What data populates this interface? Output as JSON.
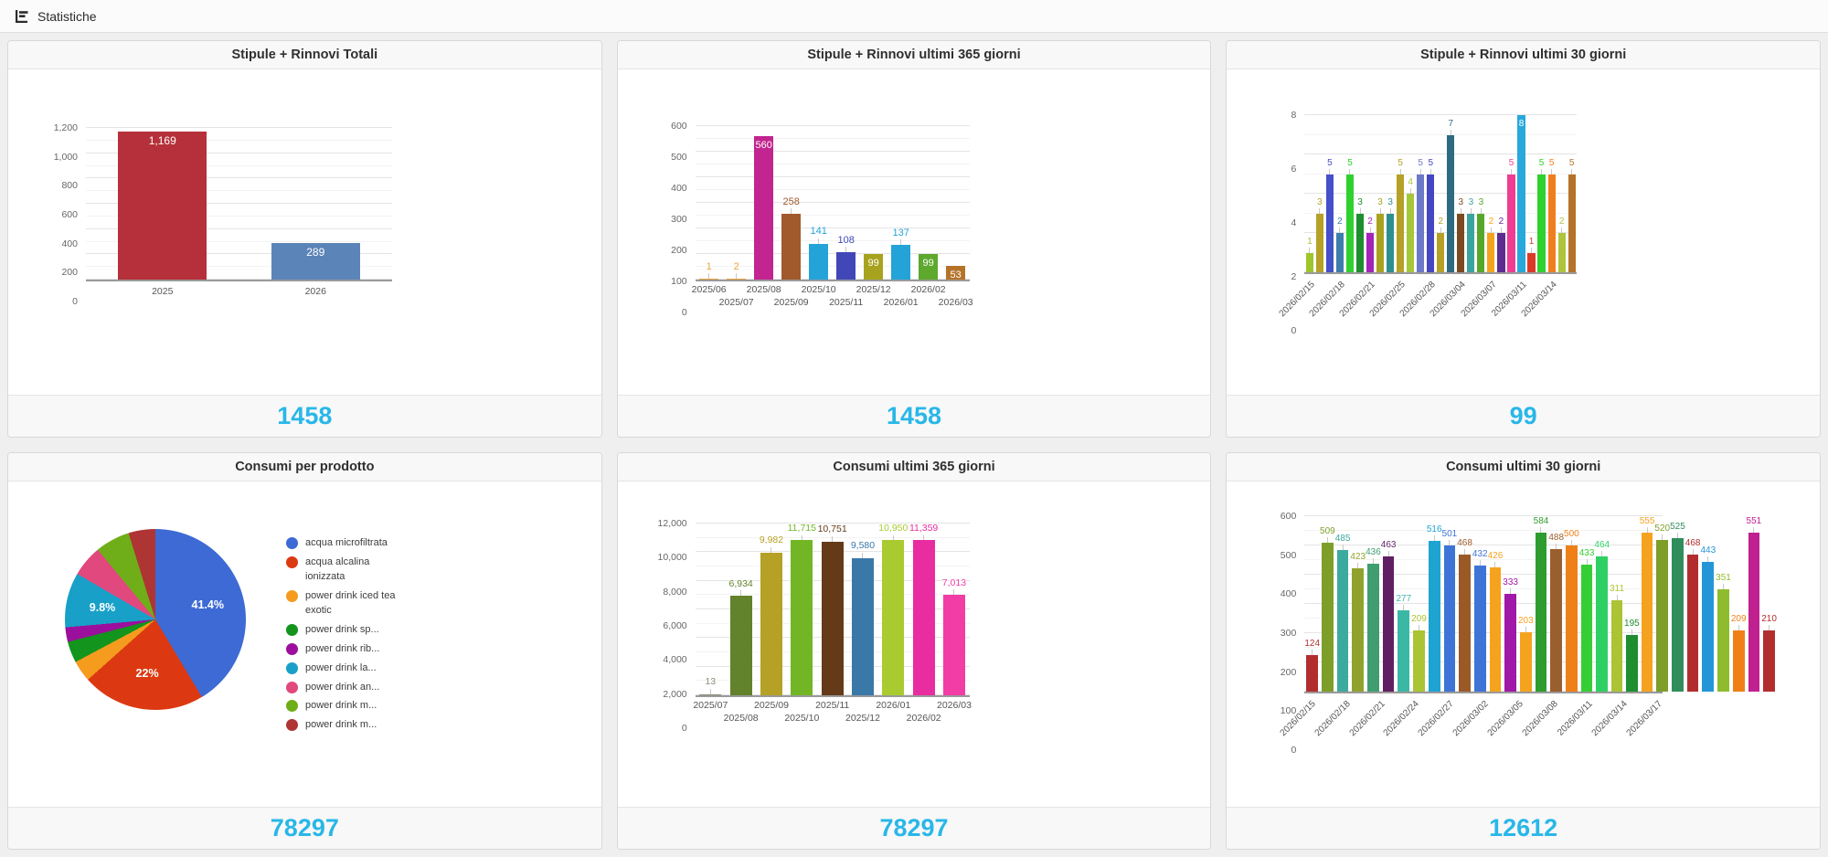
{
  "header": {
    "title": "Statistiche",
    "icon": "bar-chart-icon"
  },
  "accent_color": "#29B7E8",
  "cards": [
    {
      "title": "Stipule + Rinnovi Totali",
      "total": "1458",
      "chart": {
        "type": "bar",
        "categories": [
          "2025",
          "2026"
        ],
        "values": [
          1169,
          289
        ],
        "value_labels": [
          "1,169",
          "289"
        ],
        "colors": [
          "#B5303A",
          "#5B84B9"
        ],
        "inside_label_indexes": [
          0,
          1
        ],
        "ymax": 1200,
        "yticks": [
          "0",
          "200",
          "400",
          "600",
          "800",
          "1,000",
          "1,200"
        ],
        "xmode": "each",
        "grid": "on"
      }
    },
    {
      "title": "Stipule + Rinnovi ultimi 365 giorni",
      "total": "1458",
      "chart": {
        "type": "bar",
        "categories": [
          "2025/06",
          "2025/07",
          "2025/08",
          "2025/09",
          "2025/10",
          "2025/11",
          "2025/12",
          "2026/01",
          "2026/02",
          "2026/03"
        ],
        "values": [
          1,
          2,
          560,
          258,
          141,
          108,
          99,
          137,
          99,
          53
        ],
        "value_labels": [
          "1",
          "2",
          "560",
          "258",
          "141",
          "108",
          "99",
          "137",
          "99",
          "53"
        ],
        "colors": [
          "#E8A33D",
          "#E8A33D",
          "#C2258F",
          "#A05A2C",
          "#24A3D8",
          "#4247B8",
          "#A8A31F",
          "#24A3D8",
          "#5DA82D",
          "#B5732A"
        ],
        "inside_label_indexes": [
          2,
          6,
          8,
          9
        ],
        "ymax": 600,
        "yticks": [
          "0",
          "100",
          "200",
          "300",
          "400",
          "500",
          "600"
        ],
        "xmode": "stagger",
        "grid": "on"
      }
    },
    {
      "title": "Stipule + Rinnovi ultimi 30 giorni",
      "total": "99",
      "chart": {
        "type": "bar",
        "values": [
          1,
          3,
          5,
          2,
          5,
          3,
          2,
          3,
          3,
          5,
          4,
          5,
          5,
          2,
          7,
          3,
          3,
          3,
          2,
          2,
          5,
          8,
          1,
          5,
          5,
          2,
          5
        ],
        "value_labels": [
          "1",
          "3",
          "5",
          "2",
          "5",
          "3",
          "2",
          "3",
          "3",
          "5",
          "4",
          "5",
          "5",
          "2",
          "7",
          "3",
          "3",
          "3",
          "2",
          "2",
          "5",
          "8",
          "1",
          "5",
          "5",
          "2",
          "5"
        ],
        "colors": [
          "#9DC62D",
          "#B5A126",
          "#4450C8",
          "#3E7CAD",
          "#2FD12F",
          "#1E8E2E",
          "#A423B8",
          "#A8A31F",
          "#2E8F8F",
          "#B5A126",
          "#A4C838",
          "#6C79C8",
          "#4547C2",
          "#B5A126",
          "#2D6B80",
          "#7C4A20",
          "#3AA49E",
          "#57A82A",
          "#F5A31F",
          "#5C2D8F",
          "#EE3D92",
          "#28A9DB",
          "#DB3A28",
          "#2FD12F",
          "#EF7F1E",
          "#AFC43A",
          "#B5732A"
        ],
        "inside_label_indexes": [
          21
        ],
        "ymax": 8,
        "yticks": [
          "0",
          "2",
          "4",
          "6",
          "8"
        ],
        "xmode": "rotate",
        "label_every": 3,
        "xlabels": [
          "2026/02/15",
          "2026/02/18",
          "2026/02/21",
          "2026/02/25",
          "2026/02/28",
          "2026/03/04",
          "2026/03/07",
          "2026/03/11",
          "2026/03/14"
        ],
        "grid": "on"
      }
    },
    {
      "title": "Consumi per prodotto",
      "total": "78297",
      "chart": {
        "type": "pie",
        "legend_position": "right",
        "slices": [
          {
            "label": "acqua microfiltrata",
            "pct": 41.4,
            "pct_label": "41.4%",
            "color": "#3D6AD4"
          },
          {
            "label": "acqua alcalina ionizzata",
            "pct": 22,
            "pct_label": "22%",
            "color": "#DC3912"
          },
          {
            "label": "power drink iced tea exotic",
            "pct": 3.8,
            "color": "#F59B1D"
          },
          {
            "label": "power drink sp...",
            "pct": 3.8,
            "color": "#13941D"
          },
          {
            "label": "power drink rib...",
            "pct": 2.6,
            "color": "#9C0F9C"
          },
          {
            "label": "power drink la...",
            "pct": 9.8,
            "pct_label": "9.8%",
            "color": "#18A0C8"
          },
          {
            "label": "power drink an...",
            "pct": 5.6,
            "color": "#E0487E"
          },
          {
            "label": "power drink m...",
            "pct": 6.2,
            "color": "#6FAE18"
          },
          {
            "label": "power drink m...",
            "pct": 4.8,
            "color": "#AF3434"
          }
        ]
      }
    },
    {
      "title": "Consumi ultimi 365 giorni",
      "total": "78297",
      "chart": {
        "type": "bar",
        "categories": [
          "2025/07",
          "2025/08",
          "2025/09",
          "2025/10",
          "2025/11",
          "2025/12",
          "2026/01",
          "2026/02",
          "2026/03"
        ],
        "values": [
          13,
          6934,
          9982,
          11715,
          10751,
          9580,
          10950,
          11359,
          7013
        ],
        "value_labels": [
          "13",
          "6,934",
          "9,982",
          "11,715",
          "10,751",
          "9,580",
          "10,950",
          "11,359",
          "7,013"
        ],
        "colors": [
          "#8C8C7A",
          "#62822B",
          "#B5A126",
          "#72B626",
          "#643A19",
          "#3A78A8",
          "#AACB2F",
          "#E82DA0",
          "#F23CA6"
        ],
        "inside_label_indexes": [],
        "ymax": 12000,
        "yticks": [
          "0",
          "2,000",
          "4,000",
          "6,000",
          "8,000",
          "10,000",
          "12,000"
        ],
        "xmode": "stagger",
        "grid": "on"
      }
    },
    {
      "title": "Consumi ultimi 30 giorni",
      "total": "12612",
      "chart": {
        "type": "bar",
        "values": [
          124,
          509,
          485,
          423,
          436,
          463,
          277,
          209,
          516,
          501,
          468,
          432,
          426,
          333,
          203,
          584,
          488,
          500,
          433,
          464,
          311,
          195,
          555,
          520,
          525,
          468,
          443,
          351,
          209,
          551,
          210
        ],
        "value_labels": [
          "124",
          "509",
          "485",
          "423",
          "436",
          "463",
          "277",
          "209",
          "516",
          "501",
          "468",
          "432",
          "426",
          "333",
          "203",
          "584",
          "488",
          "500",
          "433",
          "464",
          "311",
          "195",
          "555",
          "520",
          "525",
          "468",
          "443",
          "351",
          "209",
          "551",
          "210"
        ],
        "colors": [
          "#B22E2E",
          "#7E9E2A",
          "#3CAA9F",
          "#8FA32C",
          "#3E9E70",
          "#611F63",
          "#3BB8A5",
          "#AAC433",
          "#1FA3D1",
          "#3E74D6",
          "#9A5A28",
          "#3E74D6",
          "#F5A31F",
          "#A018A8",
          "#F5A31F",
          "#2E9C2E",
          "#9A5F2E",
          "#EF8018",
          "#35CE35",
          "#2ED063",
          "#AAC433",
          "#1E8E2E",
          "#F5A31F",
          "#7E9E2A",
          "#318D5C",
          "#B22E2E",
          "#2496D8",
          "#8FBC2F",
          "#EF8018",
          "#C02090",
          "#B22E2E"
        ],
        "inside_label_indexes": [],
        "ymax": 600,
        "yticks": [
          "0",
          "100",
          "200",
          "300",
          "400",
          "500",
          "600"
        ],
        "xmode": "rotate",
        "label_every": 3,
        "xlabels": [
          "2026/02/15",
          "2026/02/18",
          "2026/02/21",
          "2026/02/24",
          "2026/02/27",
          "2026/03/02",
          "2026/03/05",
          "2026/03/08",
          "2026/03/11",
          "2026/03/14",
          "2026/03/17"
        ],
        "grid": "on"
      }
    }
  ]
}
